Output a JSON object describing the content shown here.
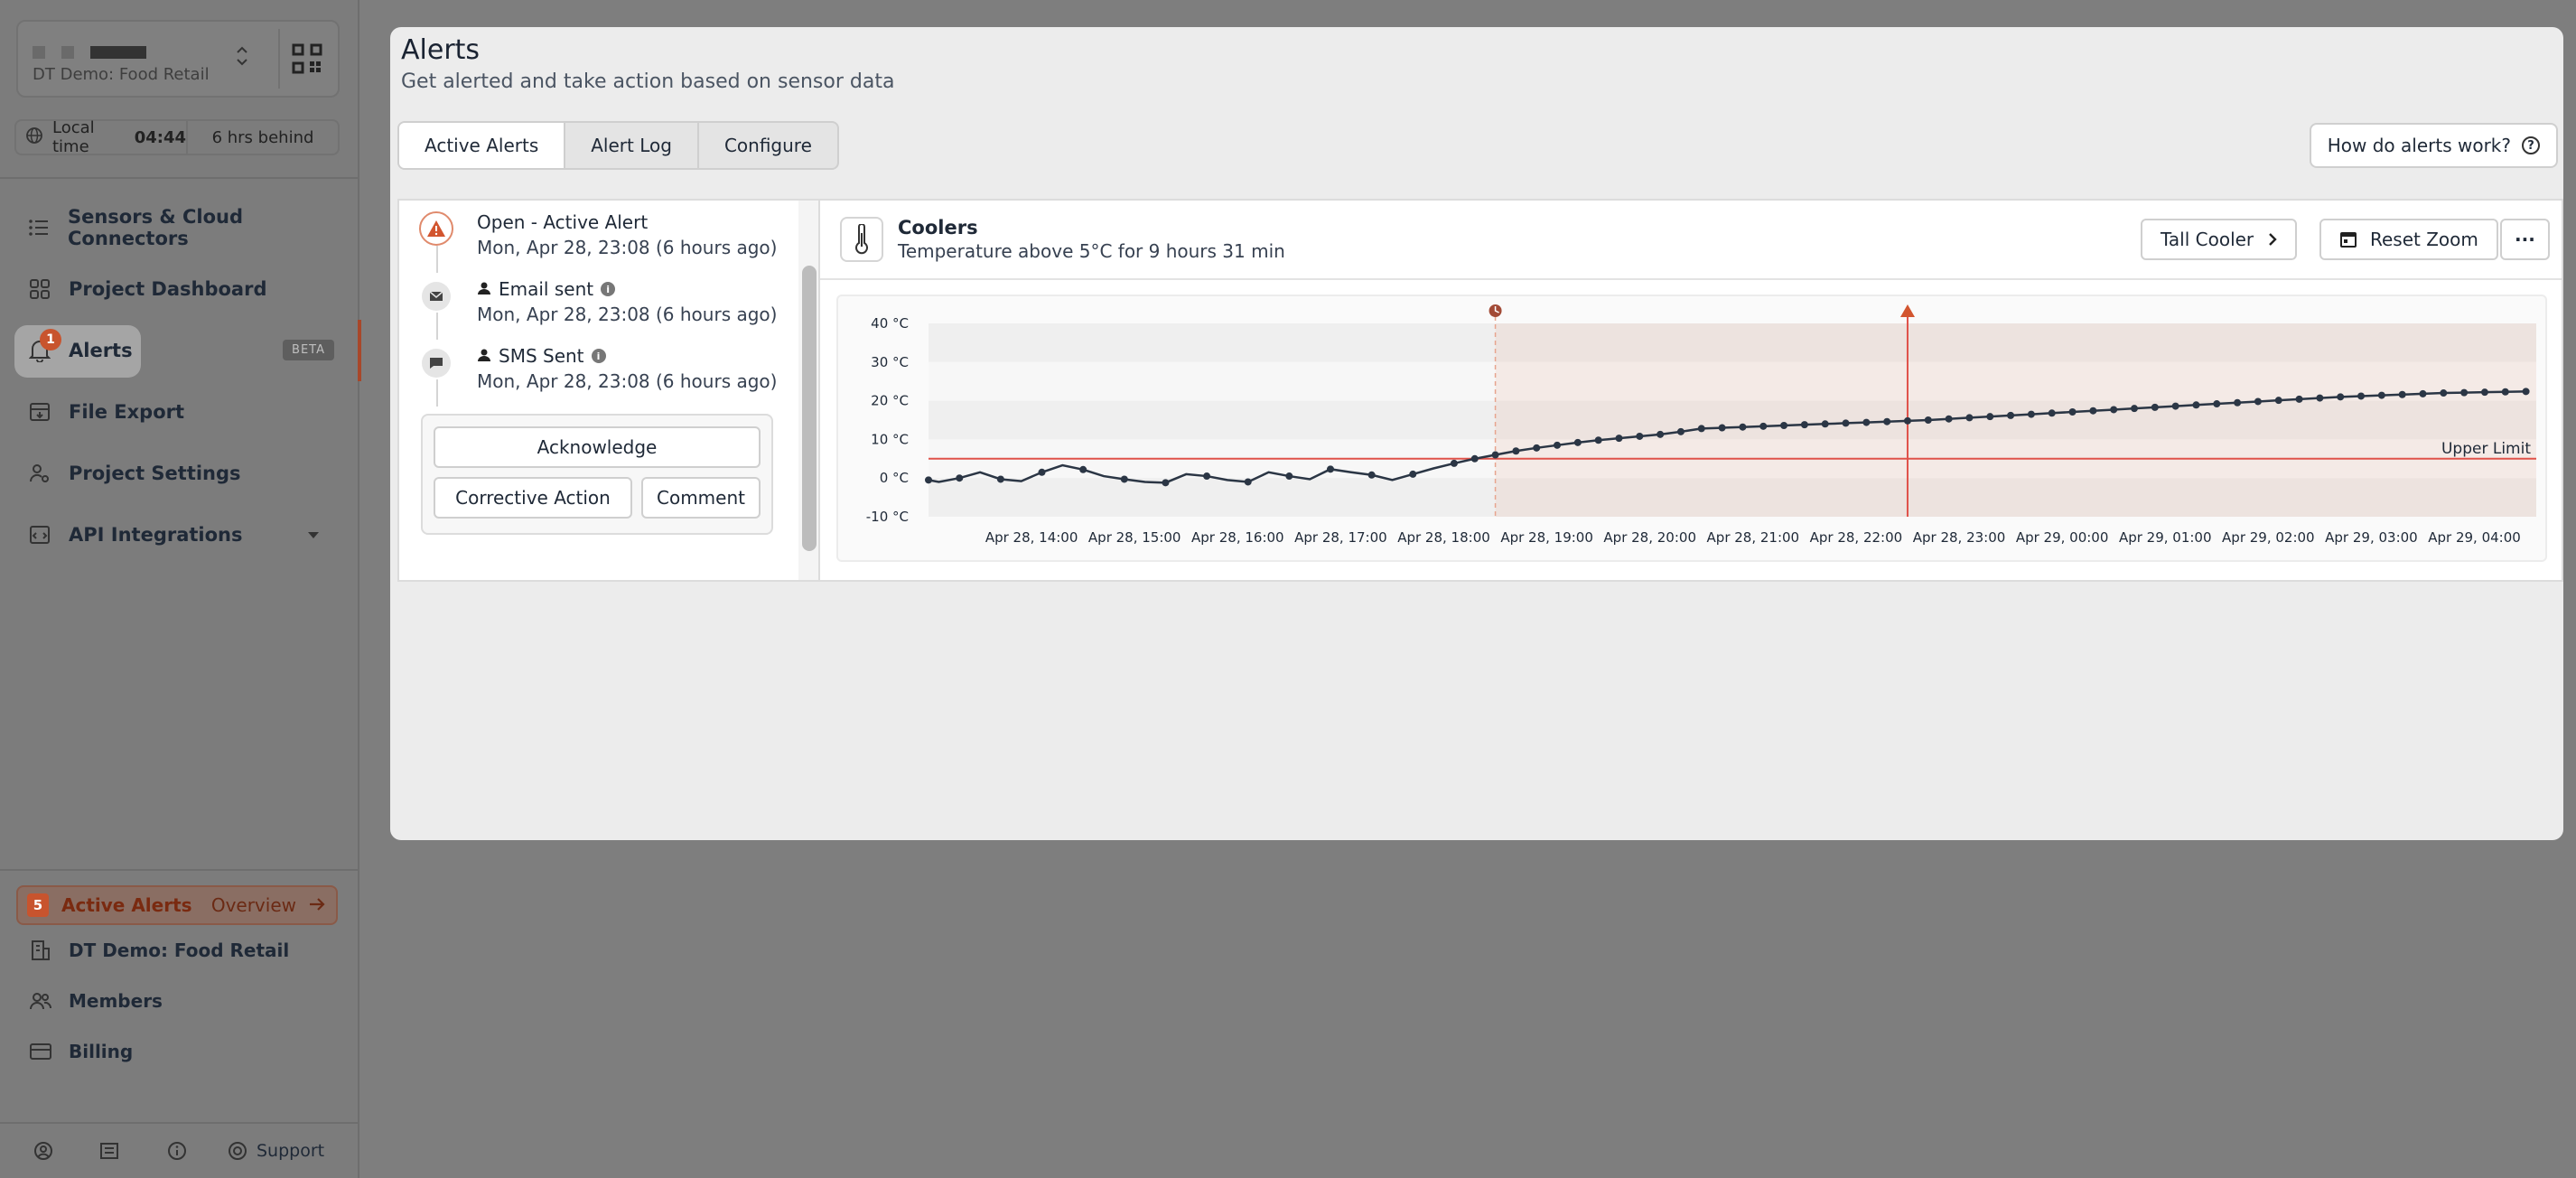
{
  "sidebar": {
    "project_name": "DT Demo: Food Retail",
    "local_time_label": "Local time",
    "local_time": "04:44",
    "time_offset": "6 hrs behind",
    "nav": [
      {
        "label": "Sensors & Cloud Connectors",
        "icon": "list-icon"
      },
      {
        "label": "Project Dashboard",
        "icon": "dashboard-icon"
      },
      {
        "label": "Alerts",
        "icon": "bell-icon",
        "badge": "1",
        "tag": "BETA"
      },
      {
        "label": "File Export",
        "icon": "export-icon"
      },
      {
        "label": "Project Settings",
        "icon": "user-settings-icon"
      },
      {
        "label": "API Integrations",
        "icon": "code-icon"
      }
    ],
    "active_alerts_count": "5",
    "active_alerts_label": "Active Alerts",
    "overview_label": "Overview",
    "org_name": "DT Demo: Food Retail",
    "members_label": "Members",
    "billing_label": "Billing",
    "support_label": "Support"
  },
  "header": {
    "title": "Alerts",
    "subtitle": "Get alerted and take action based on sensor data",
    "help_label": "How do alerts work?"
  },
  "tabs": [
    "Active Alerts",
    "Alert Log",
    "Configure"
  ],
  "timeline": [
    {
      "title": "Open - Active Alert",
      "date": "Mon, Apr 28, 23:08 (6 hours ago)"
    },
    {
      "title": "Email sent",
      "date": "Mon, Apr 28, 23:08 (6 hours ago)"
    },
    {
      "title": "SMS Sent",
      "date": "Mon, Apr 28, 23:08 (6 hours ago)"
    }
  ],
  "actions": {
    "acknowledge": "Acknowledge",
    "corrective": "Corrective Action",
    "comment": "Comment"
  },
  "alert_detail": {
    "name": "Coolers",
    "description": "Temperature above 5°C for 9 hours 31 min",
    "device_button": "Tall Cooler",
    "reset_zoom": "Reset Zoom",
    "more": "···"
  },
  "colors": {
    "accent": "#c8542e",
    "threshold": "#e0524a",
    "series": "#2b3645"
  },
  "chart_data": {
    "type": "line",
    "x_ticks": [
      "Apr 28, 14:00",
      "Apr 28, 15:00",
      "Apr 28, 16:00",
      "Apr 28, 17:00",
      "Apr 28, 18:00",
      "Apr 28, 19:00",
      "Apr 28, 20:00",
      "Apr 28, 21:00",
      "Apr 28, 22:00",
      "Apr 28, 23:00",
      "Apr 29, 00:00",
      "Apr 29, 01:00",
      "Apr 29, 02:00",
      "Apr 29, 03:00",
      "Apr 29, 04:00"
    ],
    "y_ticks": [
      "40 °C",
      "30 °C",
      "20 °C",
      "10 °C",
      "0 °C",
      "-10 °C"
    ],
    "ylim": [
      -10,
      40
    ],
    "xlim_hours": [
      13.0,
      28.6
    ],
    "threshold": {
      "value": 5,
      "label": "Upper Limit"
    },
    "alert_start_hour": 18.5,
    "alert_trigger_hour": 22.5,
    "series": [
      {
        "x": [
          13.0,
          13.1,
          13.3,
          13.5,
          13.7,
          13.9,
          14.1,
          14.3,
          14.5,
          14.7,
          14.9,
          15.1,
          15.3,
          15.5,
          15.7,
          15.9,
          16.1,
          16.3,
          16.5,
          16.7,
          16.9,
          17.1,
          17.3,
          17.5,
          17.7,
          17.9,
          18.1,
          18.3,
          18.5,
          18.7,
          18.9,
          19.1,
          19.3,
          19.5,
          19.7,
          19.9,
          20.1,
          20.3,
          20.5,
          20.7,
          20.9,
          21.1,
          21.3,
          21.5,
          21.7,
          21.9,
          22.1,
          22.3,
          22.5,
          22.7,
          22.9,
          23.1,
          23.3,
          23.5,
          23.7,
          23.9,
          24.1,
          24.3,
          24.5,
          24.7,
          24.9,
          25.1,
          25.3,
          25.5,
          25.7,
          25.9,
          26.1,
          26.3,
          26.5,
          26.7,
          26.9,
          27.1,
          27.3,
          27.5,
          27.7,
          27.9,
          28.1,
          28.3,
          28.5
        ],
        "y": [
          -0.5,
          -1.0,
          0.0,
          1.5,
          -0.3,
          -0.8,
          1.5,
          3.3,
          2.2,
          0.5,
          -0.3,
          -1.0,
          -1.2,
          1.0,
          0.5,
          -0.5,
          -1.0,
          1.5,
          0.5,
          -0.3,
          2.3,
          1.5,
          0.8,
          -0.5,
          1.0,
          2.5,
          3.8,
          5.0,
          6.0,
          7.0,
          7.8,
          8.5,
          9.2,
          9.8,
          10.3,
          10.8,
          11.3,
          12.0,
          12.8,
          13.0,
          13.2,
          13.4,
          13.6,
          13.8,
          14.0,
          14.2,
          14.4,
          14.6,
          14.8,
          15.0,
          15.3,
          15.6,
          15.9,
          16.2,
          16.5,
          16.8,
          17.1,
          17.4,
          17.7,
          18.0,
          18.3,
          18.6,
          18.9,
          19.2,
          19.5,
          19.8,
          20.1,
          20.4,
          20.7,
          21.0,
          21.2,
          21.4,
          21.6,
          21.8,
          22.0,
          22.1,
          22.2,
          22.3,
          22.4
        ]
      }
    ]
  }
}
